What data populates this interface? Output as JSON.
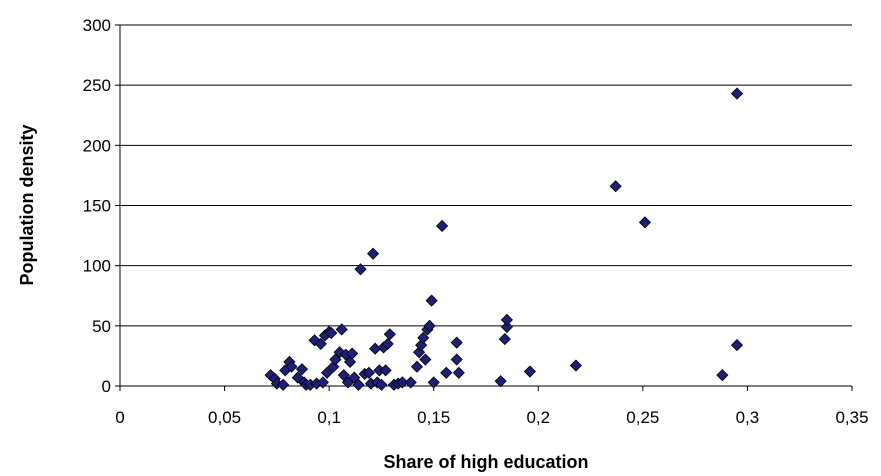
{
  "chart_data": {
    "type": "scatter",
    "title": "",
    "xlabel": "Share of high education",
    "ylabel": "Population density",
    "xlim": [
      0,
      0.35
    ],
    "ylim": [
      0,
      300
    ],
    "x_ticks": [
      0,
      0.05,
      0.1,
      0.15,
      0.2,
      0.25,
      0.3,
      0.35
    ],
    "x_tick_labels": [
      "0",
      "0,05",
      "0,1",
      "0,15",
      "0,2",
      "0,25",
      "0,3",
      "0,35"
    ],
    "y_ticks": [
      0,
      50,
      100,
      150,
      200,
      250,
      300
    ],
    "y_tick_labels": [
      "0",
      "50",
      "100",
      "150",
      "200",
      "250",
      "300"
    ],
    "grid": "horizontal",
    "legend": "none",
    "marker": "diamond",
    "marker_color": "#1f1f7a",
    "series": [
      {
        "points": [
          [
            0.072,
            9
          ],
          [
            0.074,
            6
          ],
          [
            0.075,
            2
          ],
          [
            0.078,
            1
          ],
          [
            0.079,
            13
          ],
          [
            0.081,
            20
          ],
          [
            0.082,
            16
          ],
          [
            0.085,
            7
          ],
          [
            0.087,
            14
          ],
          [
            0.088,
            3
          ],
          [
            0.089,
            1
          ],
          [
            0.091,
            1
          ],
          [
            0.093,
            38
          ],
          [
            0.094,
            2
          ],
          [
            0.096,
            35
          ],
          [
            0.097,
            3
          ],
          [
            0.098,
            42
          ],
          [
            0.099,
            11
          ],
          [
            0.1,
            45
          ],
          [
            0.101,
            44
          ],
          [
            0.102,
            16
          ],
          [
            0.103,
            22
          ],
          [
            0.105,
            28
          ],
          [
            0.106,
            47
          ],
          [
            0.107,
            9
          ],
          [
            0.108,
            26
          ],
          [
            0.109,
            3
          ],
          [
            0.11,
            20
          ],
          [
            0.111,
            27
          ],
          [
            0.112,
            7
          ],
          [
            0.114,
            1
          ],
          [
            0.115,
            97
          ],
          [
            0.117,
            10
          ],
          [
            0.119,
            11
          ],
          [
            0.12,
            2
          ],
          [
            0.121,
            110
          ],
          [
            0.122,
            31
          ],
          [
            0.123,
            3
          ],
          [
            0.124,
            13
          ],
          [
            0.125,
            1
          ],
          [
            0.126,
            32
          ],
          [
            0.127,
            13
          ],
          [
            0.128,
            35
          ],
          [
            0.129,
            43
          ],
          [
            0.131,
            1
          ],
          [
            0.133,
            2
          ],
          [
            0.135,
            3
          ],
          [
            0.139,
            3
          ],
          [
            0.142,
            16
          ],
          [
            0.143,
            28
          ],
          [
            0.144,
            34
          ],
          [
            0.145,
            40
          ],
          [
            0.146,
            22
          ],
          [
            0.147,
            47
          ],
          [
            0.148,
            50
          ],
          [
            0.149,
            71
          ],
          [
            0.15,
            3
          ],
          [
            0.154,
            133
          ],
          [
            0.156,
            11
          ],
          [
            0.161,
            22
          ],
          [
            0.161,
            36
          ],
          [
            0.162,
            11
          ],
          [
            0.182,
            4
          ],
          [
            0.184,
            39
          ],
          [
            0.185,
            49
          ],
          [
            0.185,
            55
          ],
          [
            0.196,
            12
          ],
          [
            0.218,
            17
          ],
          [
            0.237,
            166
          ],
          [
            0.251,
            136
          ],
          [
            0.288,
            9
          ],
          [
            0.295,
            243
          ],
          [
            0.295,
            34
          ]
        ]
      }
    ]
  }
}
